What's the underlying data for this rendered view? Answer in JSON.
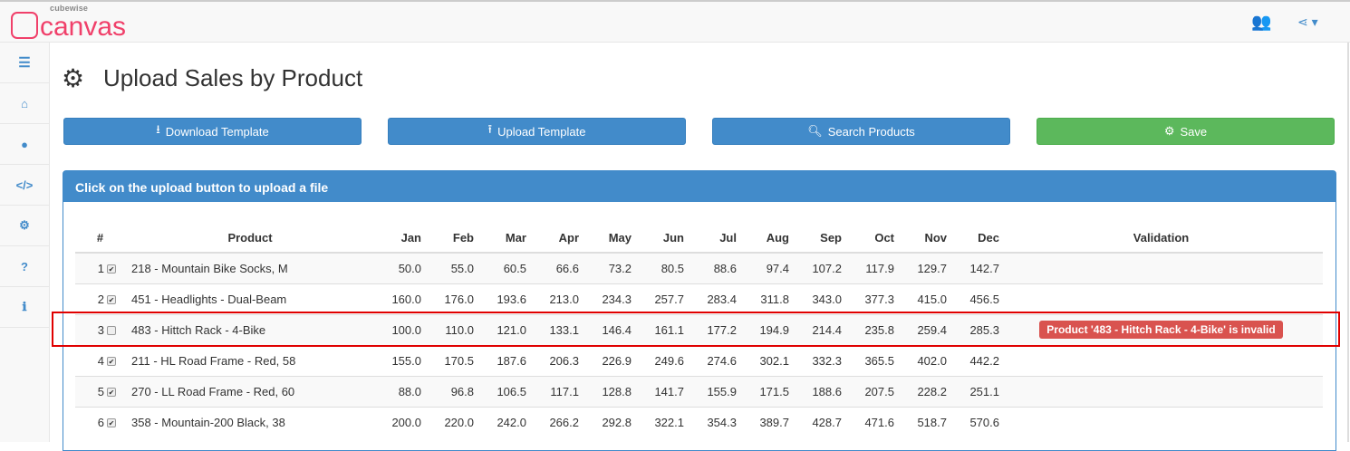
{
  "logo": {
    "brand_small": "cubewise",
    "brand": "canvas"
  },
  "topbar": {
    "users_icon": "users-icon",
    "share_icon": "share-icon"
  },
  "sidebar": {
    "items": [
      {
        "icon": "bars-icon",
        "glyph": "☰"
      },
      {
        "icon": "home-icon",
        "glyph": "⌂"
      },
      {
        "icon": "globe-icon",
        "glyph": "●"
      },
      {
        "icon": "code-icon",
        "glyph": "</>"
      },
      {
        "icon": "cogs-icon",
        "glyph": "⚙"
      },
      {
        "icon": "question-icon",
        "glyph": "?"
      },
      {
        "icon": "info-icon",
        "glyph": "ℹ"
      }
    ]
  },
  "page": {
    "title": "Upload Sales by Product"
  },
  "toolbar": {
    "download": "Download Template",
    "upload": "Upload Template",
    "search": "Search Products",
    "save": "Save"
  },
  "panel": {
    "heading": "Click on the upload button to upload a file"
  },
  "table": {
    "headers": [
      "#",
      "Product",
      "Jan",
      "Feb",
      "Mar",
      "Apr",
      "May",
      "Jun",
      "Jul",
      "Aug",
      "Sep",
      "Oct",
      "Nov",
      "Dec",
      "Validation"
    ],
    "rows": [
      {
        "num": "1",
        "checked": true,
        "product": "218 - Mountain Bike Socks, M",
        "values": [
          "50.0",
          "55.0",
          "60.5",
          "66.6",
          "73.2",
          "80.5",
          "88.6",
          "97.4",
          "107.2",
          "117.9",
          "129.7",
          "142.7"
        ],
        "validation": ""
      },
      {
        "num": "2",
        "checked": true,
        "product": "451 - Headlights - Dual-Beam",
        "values": [
          "160.0",
          "176.0",
          "193.6",
          "213.0",
          "234.3",
          "257.7",
          "283.4",
          "311.8",
          "343.0",
          "377.3",
          "415.0",
          "456.5"
        ],
        "validation": ""
      },
      {
        "num": "3",
        "checked": false,
        "product": "483 - Hittch Rack - 4-Bike",
        "values": [
          "100.0",
          "110.0",
          "121.0",
          "133.1",
          "146.4",
          "161.1",
          "177.2",
          "194.9",
          "214.4",
          "235.8",
          "259.4",
          "285.3"
        ],
        "validation": "Product '483 - Hittch Rack - 4-Bike' is invalid"
      },
      {
        "num": "4",
        "checked": true,
        "product": "211 - HL Road Frame - Red, 58",
        "values": [
          "155.0",
          "170.5",
          "187.6",
          "206.3",
          "226.9",
          "249.6",
          "274.6",
          "302.1",
          "332.3",
          "365.5",
          "402.0",
          "442.2"
        ],
        "validation": ""
      },
      {
        "num": "5",
        "checked": true,
        "product": "270 - LL Road Frame - Red, 60",
        "values": [
          "88.0",
          "96.8",
          "106.5",
          "117.1",
          "128.8",
          "141.7",
          "155.9",
          "171.5",
          "188.6",
          "207.5",
          "228.2",
          "251.1"
        ],
        "validation": ""
      },
      {
        "num": "6",
        "checked": true,
        "product": "358 - Mountain-200 Black, 38",
        "values": [
          "200.0",
          "220.0",
          "242.0",
          "266.2",
          "292.8",
          "322.1",
          "354.3",
          "389.7",
          "428.7",
          "471.6",
          "518.7",
          "570.6"
        ],
        "validation": ""
      }
    ]
  },
  "colors": {
    "primary": "#428bca",
    "success": "#5cb85c",
    "danger": "#d9534f",
    "brand": "#f0406a",
    "highlight": "#e00000"
  }
}
